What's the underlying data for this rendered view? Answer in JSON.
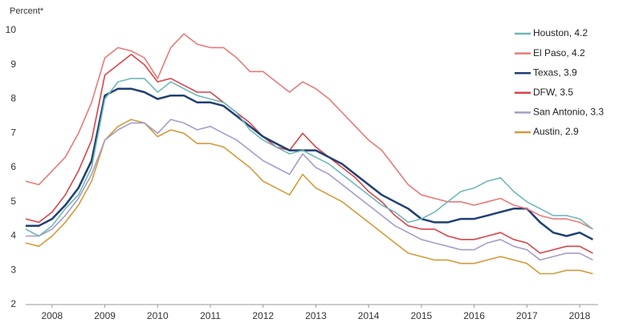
{
  "chart_data": {
    "type": "line",
    "y_label": "Percent*",
    "x": [
      2007.5,
      2007.75,
      2008,
      2008.25,
      2008.5,
      2008.75,
      2009,
      2009.25,
      2009.5,
      2009.75,
      2010,
      2010.25,
      2010.5,
      2010.75,
      2011,
      2011.25,
      2011.5,
      2011.75,
      2012,
      2012.25,
      2012.5,
      2012.75,
      2013,
      2013.25,
      2013.5,
      2013.75,
      2014,
      2014.25,
      2014.5,
      2014.75,
      2015,
      2015.25,
      2015.5,
      2015.75,
      2016,
      2016.25,
      2016.5,
      2016.75,
      2017,
      2017.25,
      2017.5,
      2017.75,
      2018,
      2018.25
    ],
    "series": [
      {
        "name": "Houston, 4.2",
        "color": "#6fb7b9",
        "values": [
          4.2,
          4.0,
          4.3,
          4.8,
          5.2,
          6.0,
          8.0,
          8.5,
          8.6,
          8.6,
          8.2,
          8.5,
          8.3,
          8.1,
          8.0,
          7.9,
          7.6,
          7.1,
          6.8,
          6.6,
          6.4,
          6.5,
          6.3,
          6.1,
          5.8,
          5.5,
          5.2,
          4.9,
          4.7,
          4.4,
          4.5,
          4.7,
          5.0,
          5.3,
          5.4,
          5.6,
          5.7,
          5.3,
          5.0,
          4.8,
          4.6,
          4.6,
          4.5,
          4.2
        ]
      },
      {
        "name": "El Paso, 4.2",
        "color": "#e87a78",
        "values": [
          5.6,
          5.5,
          5.9,
          6.3,
          7.0,
          7.9,
          9.2,
          9.5,
          9.4,
          9.2,
          8.6,
          9.5,
          9.9,
          9.6,
          9.5,
          9.5,
          9.2,
          8.8,
          8.8,
          8.5,
          8.2,
          8.5,
          8.3,
          8.0,
          7.6,
          7.2,
          6.8,
          6.5,
          6.0,
          5.5,
          5.2,
          5.1,
          5.0,
          5.0,
          4.9,
          5.0,
          5.1,
          4.9,
          4.8,
          4.6,
          4.5,
          4.5,
          4.4,
          4.2
        ]
      },
      {
        "name": "Texas, 3.9",
        "color": "#1f3f73",
        "values": [
          4.3,
          4.3,
          4.5,
          4.9,
          5.4,
          6.2,
          8.1,
          8.3,
          8.3,
          8.2,
          8.0,
          8.1,
          8.1,
          7.9,
          7.9,
          7.8,
          7.5,
          7.2,
          6.9,
          6.7,
          6.5,
          6.5,
          6.5,
          6.3,
          6.1,
          5.8,
          5.5,
          5.2,
          5.0,
          4.8,
          4.5,
          4.4,
          4.4,
          4.5,
          4.5,
          4.6,
          4.7,
          4.8,
          4.8,
          4.4,
          4.1,
          4.0,
          4.1,
          3.9
        ]
      },
      {
        "name": "DFW, 3.5",
        "color": "#d8444a",
        "values": [
          4.5,
          4.4,
          4.7,
          5.2,
          5.9,
          6.8,
          8.7,
          9.0,
          9.3,
          9.0,
          8.5,
          8.6,
          8.4,
          8.2,
          8.2,
          7.9,
          7.6,
          7.3,
          6.9,
          6.6,
          6.5,
          7.0,
          6.6,
          6.3,
          6.0,
          5.7,
          5.3,
          5.0,
          4.6,
          4.3,
          4.2,
          4.2,
          4.0,
          3.9,
          3.9,
          4.0,
          4.1,
          3.9,
          3.8,
          3.5,
          3.6,
          3.7,
          3.7,
          3.5
        ]
      },
      {
        "name": "San Antonio, 3.3",
        "color": "#a69cc9",
        "values": [
          4.0,
          4.0,
          4.2,
          4.6,
          5.1,
          5.8,
          6.8,
          7.1,
          7.3,
          7.3,
          7.0,
          7.4,
          7.3,
          7.1,
          7.2,
          7.0,
          6.8,
          6.5,
          6.2,
          6.0,
          5.8,
          6.4,
          6.0,
          5.8,
          5.5,
          5.2,
          4.9,
          4.6,
          4.3,
          4.1,
          3.9,
          3.8,
          3.7,
          3.6,
          3.6,
          3.8,
          3.9,
          3.7,
          3.6,
          3.3,
          3.4,
          3.5,
          3.5,
          3.3
        ]
      },
      {
        "name": "Austin, 2.9",
        "color": "#d49a3a",
        "values": [
          3.8,
          3.7,
          4.0,
          4.4,
          4.9,
          5.6,
          6.8,
          7.2,
          7.4,
          7.3,
          6.9,
          7.1,
          7.0,
          6.7,
          6.7,
          6.6,
          6.3,
          6.0,
          5.6,
          5.4,
          5.2,
          5.8,
          5.4,
          5.2,
          5.0,
          4.7,
          4.4,
          4.1,
          3.8,
          3.5,
          3.4,
          3.3,
          3.3,
          3.2,
          3.2,
          3.3,
          3.4,
          3.3,
          3.2,
          2.9,
          2.9,
          3.0,
          3.0,
          2.9
        ]
      }
    ],
    "xlim": [
      2007.5,
      2018.35
    ],
    "xticks": [
      2008,
      2009,
      2010,
      2011,
      2012,
      2013,
      2014,
      2015,
      2016,
      2017,
      2018
    ],
    "ylim": [
      2,
      10
    ],
    "yticks": [
      2,
      3,
      4,
      5,
      6,
      7,
      8,
      9,
      10
    ],
    "grid": false,
    "legend": "top-right"
  }
}
